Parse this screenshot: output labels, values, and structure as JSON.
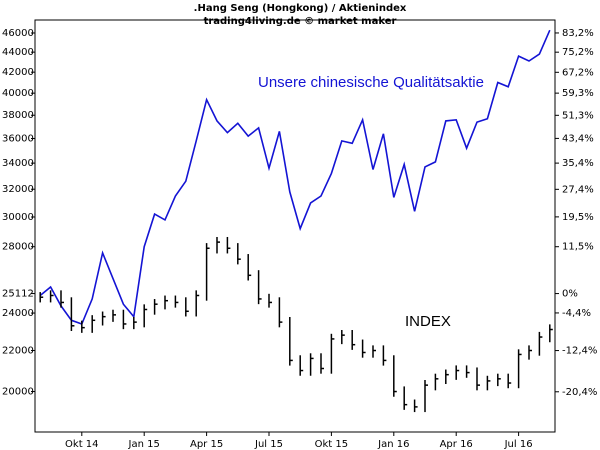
{
  "chart_data": {
    "type": "line",
    "title": ".Hang Seng (Hongkong) / Aktienindex",
    "subtitle": "trading4living.de © market maker",
    "yscale": "log",
    "ylim": [
      18206,
      47411
    ],
    "yticks": [
      20000,
      22000,
      24000,
      25112,
      28000,
      30000,
      32000,
      34000,
      36000,
      38000,
      40000,
      42000,
      44000,
      46000
    ],
    "y2lim": [
      -27.5,
      88.8
    ],
    "y2ticks": [
      {
        "value": -20.4,
        "label": "-20,4%"
      },
      {
        "value": -12.4,
        "label": "-12,4%"
      },
      {
        "value": -4.4,
        "label": "-4,4%"
      },
      {
        "value": 0,
        "label": "0%"
      },
      {
        "value": 11.5,
        "label": "11,5%"
      },
      {
        "value": 19.5,
        "label": "19,5%"
      },
      {
        "value": 27.4,
        "label": "27,4%"
      },
      {
        "value": 35.4,
        "label": "35,4%"
      },
      {
        "value": 43.4,
        "label": "43,4%"
      },
      {
        "value": 51.3,
        "label": "51,3%"
      },
      {
        "value": 59.3,
        "label": "59,3%"
      },
      {
        "value": 67.2,
        "label": "67,2%"
      },
      {
        "value": 75.2,
        "label": "75,2%"
      },
      {
        "value": 83.2,
        "label": "83,2%"
      }
    ],
    "categories": [
      null,
      null,
      null,
      null,
      "Okt 14",
      null,
      null,
      null,
      null,
      null,
      "Jan 15",
      null,
      null,
      null,
      null,
      null,
      "Apr 15",
      null,
      null,
      null,
      null,
      null,
      "Jul 15",
      null,
      null,
      null,
      null,
      null,
      "Okt 15",
      null,
      null,
      null,
      null,
      null,
      "Jan 16",
      null,
      null,
      null,
      null,
      null,
      "Apr 16",
      null,
      null,
      null,
      null,
      null,
      "Jul 16",
      null,
      null,
      null
    ],
    "series": [
      {
        "name": "Unsere chinesische Qualitätsaktie",
        "color": "#1414d4",
        "style": "line",
        "values": [
          25000,
          25500,
          24400,
          23600,
          23400,
          24800,
          27600,
          26000,
          24500,
          23800,
          28000,
          30200,
          29800,
          31500,
          32600,
          35800,
          39400,
          37500,
          36500,
          37300,
          36200,
          36900,
          33600,
          36600,
          31800,
          29200,
          31000,
          31500,
          33200,
          35800,
          35600,
          37600,
          33500,
          36400,
          31400,
          33900,
          30400,
          33700,
          34100,
          37500,
          37600,
          35200,
          37400,
          37700,
          41000,
          40600,
          43600,
          43100,
          43800,
          46300
        ]
      },
      {
        "name": "INDEX",
        "color": "#000000",
        "style": "ohlc",
        "values": [
          24900,
          25000,
          24600,
          23300,
          23200,
          23600,
          23800,
          23900,
          23400,
          23500,
          24200,
          24500,
          24700,
          24600,
          24100,
          25000,
          27900,
          28300,
          27900,
          27200,
          26200,
          24800,
          24600,
          23500,
          21500,
          21000,
          21600,
          21100,
          22600,
          22800,
          22300,
          21900,
          22000,
          21500,
          20000,
          19400,
          19300,
          20300,
          20600,
          20800,
          21000,
          20900,
          20300,
          20500,
          20600,
          20400,
          21800,
          22000,
          22700,
          23100
        ]
      }
    ]
  }
}
